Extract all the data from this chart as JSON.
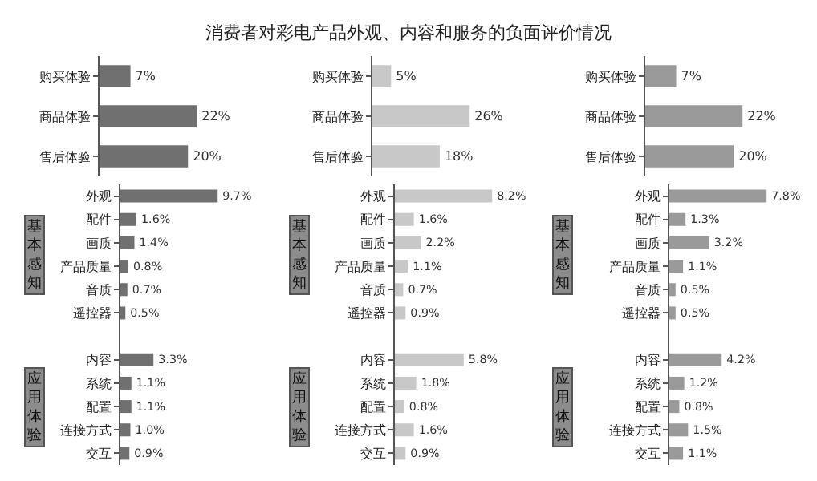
{
  "chart_data": [
    {
      "type": "bar",
      "orientation": "horizontal",
      "categories": [
        "购买体验",
        "商品体验",
        "售后体验"
      ],
      "values": [
        7,
        22,
        20
      ],
      "value_labels": [
        "7%",
        "22%",
        "20%"
      ],
      "color": "#707070"
    },
    {
      "type": "bar",
      "orientation": "horizontal",
      "categories": [
        "外观",
        "配件",
        "画质",
        "产品质量",
        "音质",
        "遥控器",
        null,
        "内容",
        "系统",
        "配置",
        "连接方式",
        "交互"
      ],
      "values": [
        9.7,
        1.6,
        1.4,
        0.8,
        0.7,
        0.5,
        null,
        3.3,
        1.1,
        1.1,
        1.0,
        0.9
      ],
      "value_labels": [
        "9.7%",
        "1.6%",
        "1.4%",
        "0.8%",
        "0.7%",
        "0.5%",
        null,
        "3.3%",
        "1.1%",
        "1.1%",
        "1.0%",
        "0.9%"
      ],
      "color": "#707070",
      "annotations": [
        "基本感知",
        "应用体验"
      ]
    },
    {
      "type": "bar",
      "orientation": "horizontal",
      "title": "消费者对彩电产品外观、内容和服务的负面评价情况",
      "categories": [
        "购买体验",
        "商品体验",
        "售后体验"
      ],
      "values": [
        5,
        26,
        18
      ],
      "value_labels": [
        "5%",
        "26%",
        "18%"
      ],
      "color": "#c8c8c8"
    },
    {
      "type": "bar",
      "orientation": "horizontal",
      "categories": [
        "外观",
        "配件",
        "画质",
        "产品质量",
        "音质",
        "遥控器",
        null,
        "内容",
        "系统",
        "配置",
        "连接方式",
        "交互"
      ],
      "values": [
        8.2,
        1.6,
        2.2,
        1.1,
        0.7,
        0.9,
        null,
        5.8,
        1.8,
        0.8,
        1.6,
        0.9
      ],
      "value_labels": [
        "8.2%",
        "1.6%",
        "2.2%",
        "1.1%",
        "0.7%",
        "0.9%",
        null,
        "5.8%",
        "1.8%",
        "0.8%",
        "1.6%",
        "0.9%"
      ],
      "color": "#c8c8c8",
      "annotations": [
        "基本感知",
        "应用体验"
      ]
    },
    {
      "type": "bar",
      "orientation": "horizontal",
      "categories": [
        "购买体验",
        "商品体验",
        "售后体验"
      ],
      "values": [
        7,
        22,
        20
      ],
      "value_labels": [
        "7%",
        "22%",
        "20%"
      ],
      "color": "#9a9a9a"
    },
    {
      "type": "bar",
      "orientation": "horizontal",
      "categories": [
        "外观",
        "配件",
        "画质",
        "产品质量",
        "音质",
        "遥控器",
        null,
        "内容",
        "系统",
        "配置",
        "连接方式",
        "交互"
      ],
      "values": [
        7.8,
        1.3,
        3.2,
        1.1,
        0.5,
        0.5,
        null,
        4.2,
        1.2,
        0.8,
        1.5,
        1.1
      ],
      "value_labels": [
        "7.8%",
        "1.3%",
        "3.2%",
        "1.1%",
        "0.5%",
        "0.5%",
        null,
        "4.2%",
        "1.2%",
        "0.8%",
        "1.5%",
        "1.1%"
      ],
      "color": "#9a9a9a",
      "annotations": [
        "基本感知",
        "应用体验"
      ]
    }
  ]
}
